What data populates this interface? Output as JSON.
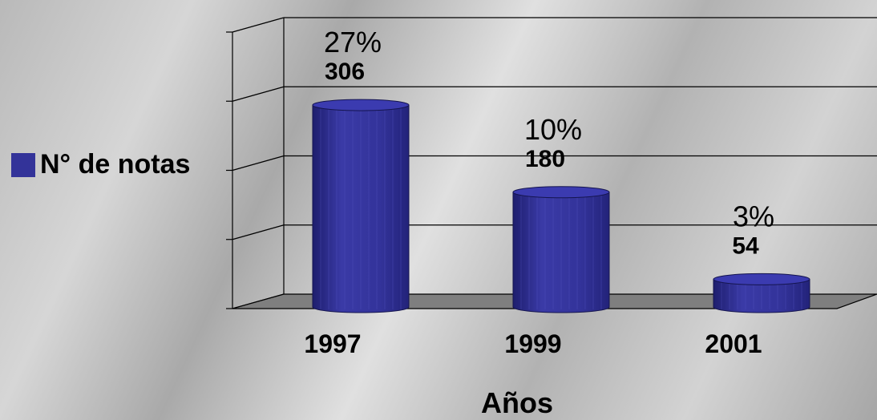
{
  "chart_data": {
    "type": "bar",
    "categories": [
      "1997",
      "1999",
      "2001"
    ],
    "series": [
      {
        "name": "N° de notas",
        "values": [
          306,
          180,
          54
        ]
      }
    ],
    "percent_labels": [
      "27%",
      "10%",
      "3%"
    ],
    "xlabel": "Años",
    "ylabel": "",
    "ylim": [
      0,
      400
    ],
    "grid": true,
    "legend": "left",
    "bar_color": "#333399"
  }
}
